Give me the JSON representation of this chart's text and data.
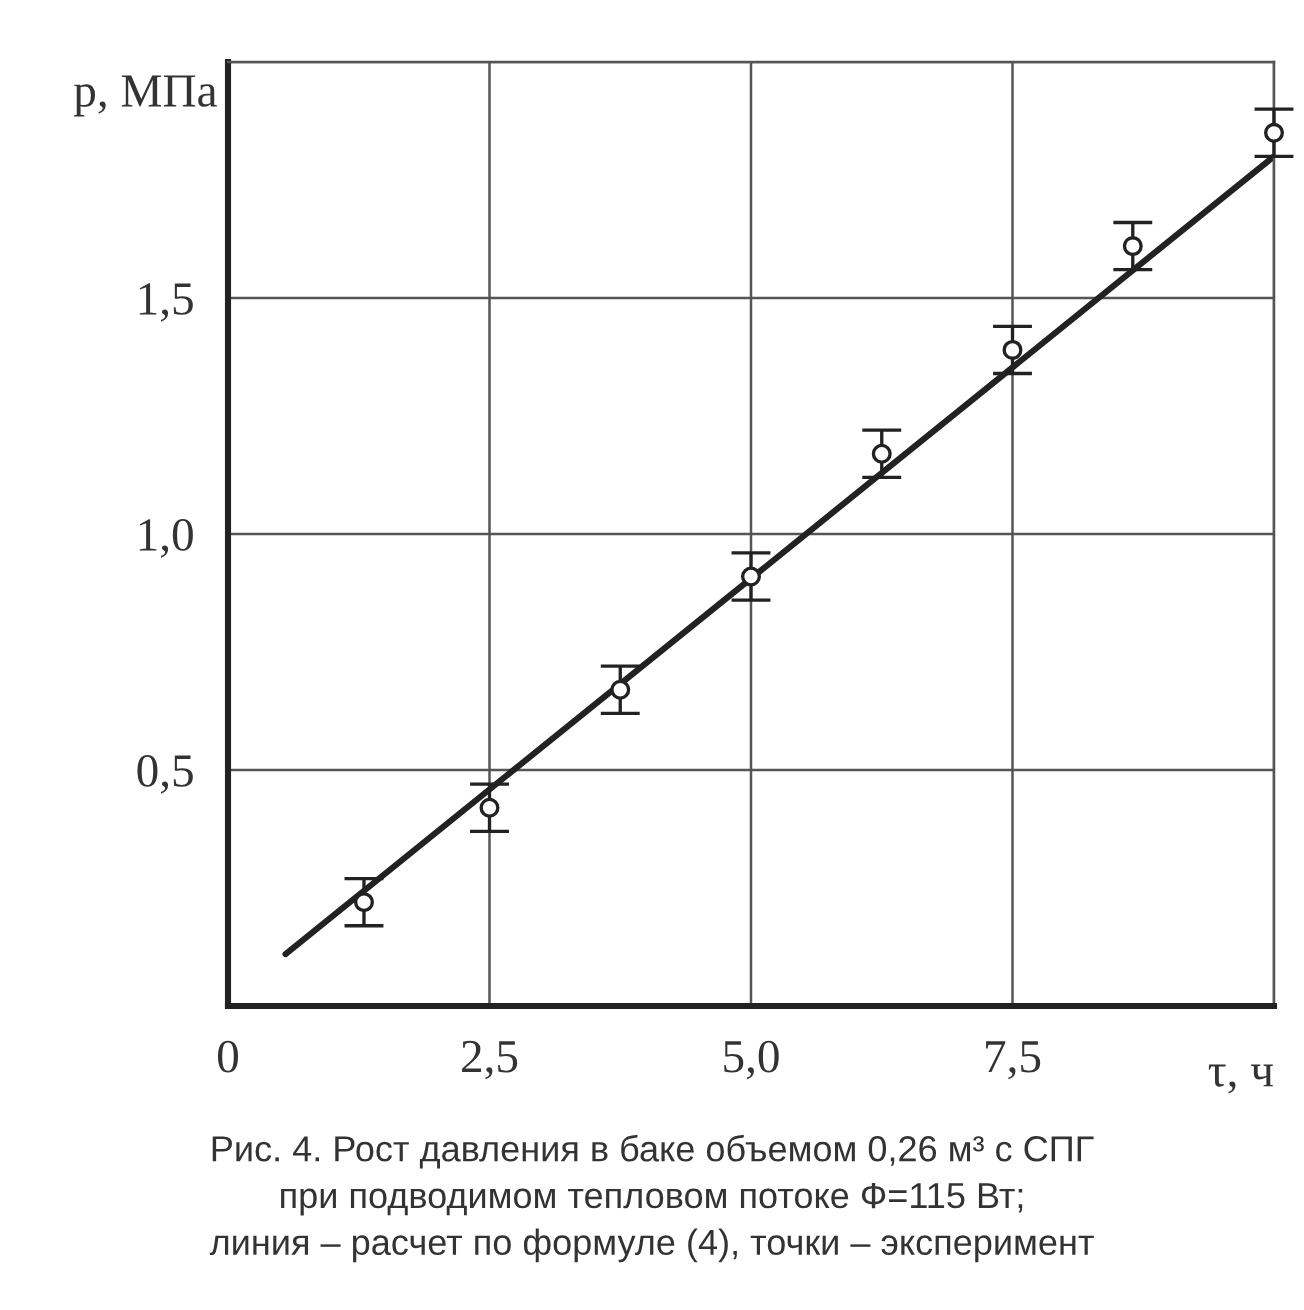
{
  "chart_data": {
    "type": "scatter",
    "ylabel": "p, МПа",
    "xlabel": "τ, ч",
    "xlim": [
      0,
      10
    ],
    "xticks": [
      {
        "value": 0,
        "label": "0"
      },
      {
        "value": 2.5,
        "label": "2,5"
      },
      {
        "value": 5,
        "label": "5,0"
      },
      {
        "value": 7.5,
        "label": "7,5"
      },
      {
        "value": 10,
        "label": null
      }
    ],
    "ylim": [
      0,
      2.0
    ],
    "yticks": [
      {
        "value": 0,
        "label": null
      },
      {
        "value": 0.5,
        "label": "0,5"
      },
      {
        "value": 1.0,
        "label": "1,0"
      },
      {
        "value": 1.5,
        "label": "1,5"
      },
      {
        "value": 2.0,
        "label": null
      }
    ],
    "grid": true,
    "series": [
      {
        "marker": "circle",
        "color": "#222222",
        "x": [
          1.3,
          2.5,
          3.75,
          5.0,
          6.25,
          7.5,
          8.65,
          10.0
        ],
        "values": [
          0.22,
          0.42,
          0.67,
          0.91,
          1.17,
          1.39,
          1.61,
          1.85
        ],
        "errors": [
          0.05,
          0.05,
          0.05,
          0.05,
          0.05,
          0.05,
          0.05,
          0.05
        ]
      },
      {
        "type": "line",
        "color": "#222222",
        "x": [
          0.55,
          10.0
        ],
        "values": [
          0.11,
          1.8
        ],
        "line_style": "solid"
      }
    ],
    "annotations": [
      "Рис. 4. Рост давления в баке объемом 0,26 м³ с СПГ\nпри подводимом тепловом потоке Ф=115 Вт;\nлиния – расчет по формуле (4), точки – эксперимент"
    ]
  }
}
